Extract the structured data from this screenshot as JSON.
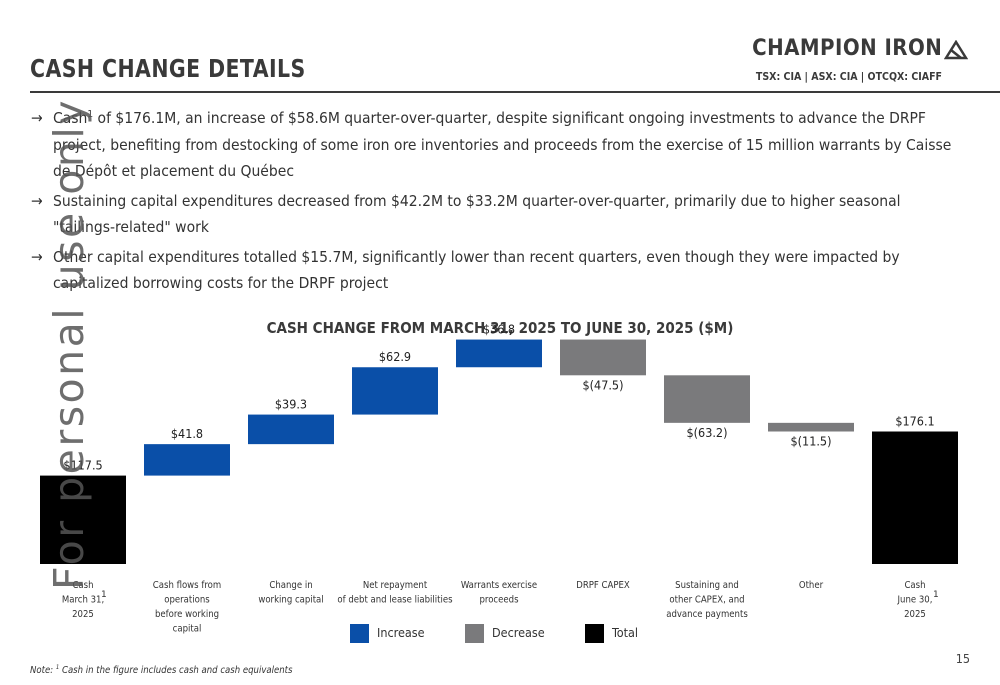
{
  "header": {
    "title": "CASH CHANGE DETAILS",
    "logo_text": "CHAMPION IRON",
    "ticker": "TSX: CIA  |  ASX: CIA  |  OTCQX: CIAFF"
  },
  "bullets": [
    {
      "arrow": "→",
      "pre": "Cash",
      "sup": "1",
      "text": " of $176.1M, an increase of $58.6M quarter-over-quarter, despite significant ongoing investments to advance the DRPF project, benefiting from destocking of some iron ore inventories and proceeds from the exercise of 15 million warrants by Caisse de Dépôt et placement du Québec"
    },
    {
      "arrow": "→",
      "pre": "",
      "sup": "",
      "text": "Sustaining capital expenditures decreased from $42.2M to $33.2M quarter-over-quarter, primarily due to higher seasonal \"tailings-related\" work"
    },
    {
      "arrow": "→",
      "pre": "",
      "sup": "",
      "text": "Other capital expenditures totalled $15.7M, significantly lower than recent quarters, even though they were impacted by capitalized borrowing costs for the DRPF project"
    }
  ],
  "watermark": "For personal use only",
  "chart_data": {
    "type": "bar",
    "subtype": "waterfall",
    "title": "CASH CHANGE FROM MARCH 31, 2025 TO JUNE 30, 2025 ($M)",
    "categories": [
      {
        "lines": [
          "Cash",
          "March 31,",
          "2025"
        ],
        "sup": "1"
      },
      {
        "lines": [
          "Cash flows from",
          "operations",
          "before working",
          "capital"
        ],
        "sup": ""
      },
      {
        "lines": [
          "Change in",
          "working capital"
        ],
        "sup": ""
      },
      {
        "lines": [
          "Net repayment",
          "of debt and lease liabilities"
        ],
        "sup": ""
      },
      {
        "lines": [
          "Warrants exercise",
          "proceeds"
        ],
        "sup": ""
      },
      {
        "lines": [
          "DRPF CAPEX"
        ],
        "sup": ""
      },
      {
        "lines": [
          "Sustaining and",
          "other CAPEX, and",
          "advance payments"
        ],
        "sup": ""
      },
      {
        "lines": [
          "Other"
        ],
        "sup": ""
      },
      {
        "lines": [
          "Cash",
          "June 30,",
          "2025"
        ],
        "sup": "1"
      }
    ],
    "values": [
      117.5,
      41.8,
      39.3,
      62.9,
      36.8,
      -47.5,
      -63.2,
      -11.5,
      176.1
    ],
    "kinds": [
      "total",
      "increase",
      "increase",
      "increase",
      "increase",
      "decrease",
      "decrease",
      "decrease",
      "total"
    ],
    "labels": [
      "$117.5",
      "$41.8",
      "$39.3",
      "$62.9",
      "$36.8",
      "$(47.5)",
      "$(63.2)",
      "$(11.5)",
      "$176.1"
    ],
    "colors": {
      "increase": "#0a4fa8",
      "decrease": "#7a7a7c",
      "total": "#000000"
    },
    "legend": [
      {
        "label": "Increase",
        "kind": "increase"
      },
      {
        "label": "Decrease",
        "kind": "decrease"
      },
      {
        "label": "Total",
        "kind": "total"
      }
    ],
    "legend_position": "bottom"
  },
  "note": {
    "pre": "Note: ",
    "sup": "1",
    "text": " Cash in the figure includes cash and cash equivalents"
  },
  "page_number": "15"
}
